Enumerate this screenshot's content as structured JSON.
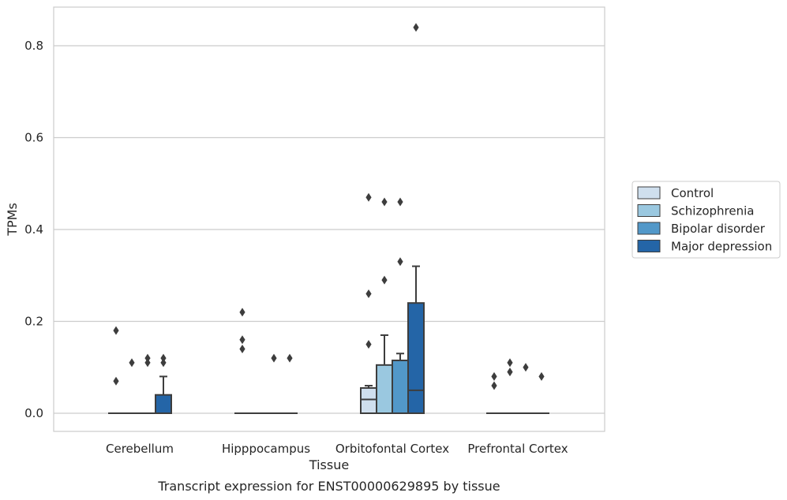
{
  "chart_data": {
    "type": "box",
    "title": "Transcript expression for ENST00000629895 by tissue",
    "xlabel": "Tissue",
    "ylabel": "TPMs",
    "categories": [
      "Cerebellum",
      "Hipppocampus",
      "Orbitofontal Cortex",
      "Prefrontal Cortex"
    ],
    "ylim": [
      -0.04,
      0.885
    ],
    "yticks": [
      "0.0",
      "0.2",
      "0.4",
      "0.6",
      "0.8"
    ],
    "grid": "horizontal",
    "legend_position": "right",
    "series": [
      {
        "name": "Control",
        "color": "#cfdfee",
        "boxes": [
          {
            "q1": 0,
            "median": 0,
            "q3": 0,
            "whisker_low": 0,
            "whisker_high": 0,
            "outliers": [
              0.18,
              0.07
            ]
          },
          {
            "q1": 0,
            "median": 0,
            "q3": 0,
            "whisker_low": 0,
            "whisker_high": 0,
            "outliers": [
              0.22,
              0.16,
              0.14
            ]
          },
          {
            "q1": 0,
            "median": 0.03,
            "q3": 0.055,
            "whisker_low": 0,
            "whisker_high": 0.06,
            "outliers": [
              0.47,
              0.26,
              0.15
            ]
          },
          {
            "q1": 0,
            "median": 0,
            "q3": 0,
            "whisker_low": 0,
            "whisker_high": 0,
            "outliers": [
              0.08,
              0.06
            ]
          }
        ]
      },
      {
        "name": "Schizophrenia",
        "color": "#9ac8e0",
        "boxes": [
          {
            "q1": 0,
            "median": 0,
            "q3": 0,
            "whisker_low": 0,
            "whisker_high": 0,
            "outliers": [
              0.11
            ]
          },
          {
            "q1": 0,
            "median": 0,
            "q3": 0,
            "whisker_low": 0,
            "whisker_high": 0,
            "outliers": []
          },
          {
            "q1": 0,
            "median": 0,
            "q3": 0.105,
            "whisker_low": 0,
            "whisker_high": 0.17,
            "outliers": [
              0.46,
              0.29
            ]
          },
          {
            "q1": 0,
            "median": 0,
            "q3": 0,
            "whisker_low": 0,
            "whisker_high": 0,
            "outliers": [
              0.11,
              0.09
            ]
          }
        ]
      },
      {
        "name": "Bipolar disorder",
        "color": "#5298c9",
        "boxes": [
          {
            "q1": 0,
            "median": 0,
            "q3": 0,
            "whisker_low": 0,
            "whisker_high": 0,
            "outliers": [
              0.12,
              0.11
            ]
          },
          {
            "q1": 0,
            "median": 0,
            "q3": 0,
            "whisker_low": 0,
            "whisker_high": 0,
            "outliers": [
              0.12
            ]
          },
          {
            "q1": 0,
            "median": 0,
            "q3": 0.115,
            "whisker_low": 0,
            "whisker_high": 0.13,
            "outliers": [
              0.46,
              0.33
            ]
          },
          {
            "q1": 0,
            "median": 0,
            "q3": 0,
            "whisker_low": 0,
            "whisker_high": 0,
            "outliers": [
              0.1
            ]
          }
        ]
      },
      {
        "name": "Major depression",
        "color": "#2465a7",
        "boxes": [
          {
            "q1": 0,
            "median": 0,
            "q3": 0.04,
            "whisker_low": 0,
            "whisker_high": 0.08,
            "outliers": [
              0.12,
              0.11
            ]
          },
          {
            "q1": 0,
            "median": 0,
            "q3": 0,
            "whisker_low": 0,
            "whisker_high": 0,
            "outliers": [
              0.12
            ]
          },
          {
            "q1": 0,
            "median": 0.05,
            "q3": 0.24,
            "whisker_low": 0,
            "whisker_high": 0.32,
            "outliers": [
              0.84
            ]
          },
          {
            "q1": 0,
            "median": 0,
            "q3": 0,
            "whisker_low": 0,
            "whisker_high": 0,
            "outliers": [
              0.08
            ]
          }
        ]
      }
    ]
  }
}
